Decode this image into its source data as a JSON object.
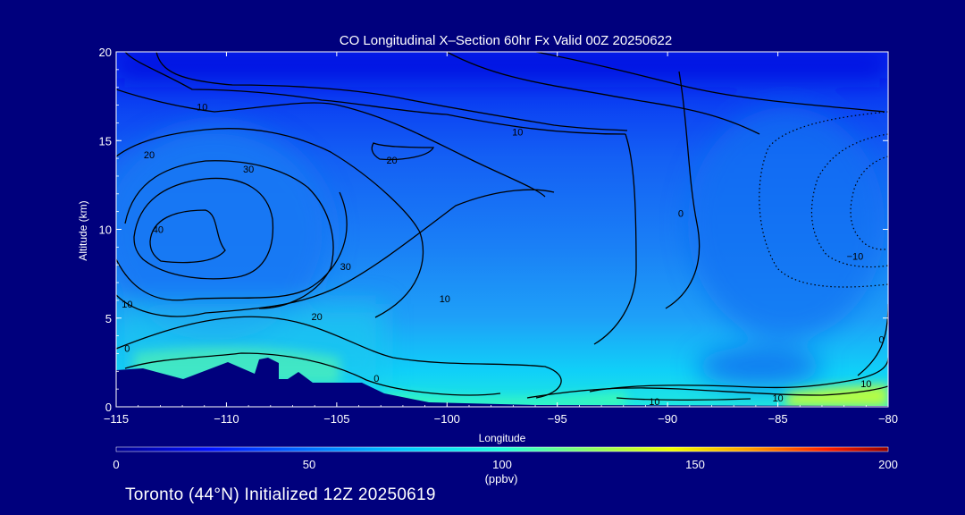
{
  "chart_data": {
    "type": "heatmap",
    "title": "CO Longitudinal X–Section 60hr  Fx Valid 00Z 20250622",
    "xlabel": "Longitude",
    "ylabel": "Altitude (km)",
    "xlim": [
      -115,
      -80
    ],
    "ylim": [
      0,
      20
    ],
    "x_ticks": [
      "−115",
      "−110",
      "−105",
      "−100",
      "−95",
      "−90",
      "−85",
      "−80"
    ],
    "y_ticks": [
      "0",
      "5",
      "10",
      "15",
      "20"
    ],
    "colorbar": {
      "min": 0,
      "max": 200,
      "ticks": [
        "0",
        "50",
        "100",
        "150",
        "200"
      ],
      "unit": "(ppbv)"
    },
    "contour_labels": [
      {
        "text": "10",
        "lon": -111.1,
        "alt": 16.9
      },
      {
        "text": "20",
        "lon": -113.5,
        "alt": 14.2
      },
      {
        "text": "30",
        "lon": -109.0,
        "alt": 13.4
      },
      {
        "text": "40",
        "lon": -113.1,
        "alt": 10.0
      },
      {
        "text": "30",
        "lon": -104.6,
        "alt": 7.9
      },
      {
        "text": "20",
        "lon": -105.9,
        "alt": 5.1
      },
      {
        "text": "20",
        "lon": -102.5,
        "alt": 13.9
      },
      {
        "text": "10",
        "lon": -96.8,
        "alt": 15.5
      },
      {
        "text": "10",
        "lon": -100.1,
        "alt": 6.1
      },
      {
        "text": "0",
        "lon": -89.4,
        "alt": 10.9
      },
      {
        "text": "−10",
        "lon": -81.5,
        "alt": 8.5
      },
      {
        "text": "10",
        "lon": -114.5,
        "alt": 5.8
      },
      {
        "text": "0",
        "lon": -114.5,
        "alt": 3.3
      },
      {
        "text": "0",
        "lon": -103.2,
        "alt": 1.6
      },
      {
        "text": "10",
        "lon": -90.6,
        "alt": 0.3
      },
      {
        "text": "10",
        "lon": -85.0,
        "alt": 0.5
      },
      {
        "text": "10",
        "lon": -81.0,
        "alt": 1.3
      },
      {
        "text": "0",
        "lon": -80.3,
        "alt": 3.8
      }
    ]
  },
  "footer": "Toronto (44°N) Initialized 12Z 20250619",
  "colors": {
    "background": "#00007d",
    "terrain": "#00007d",
    "contour": "#000000"
  }
}
